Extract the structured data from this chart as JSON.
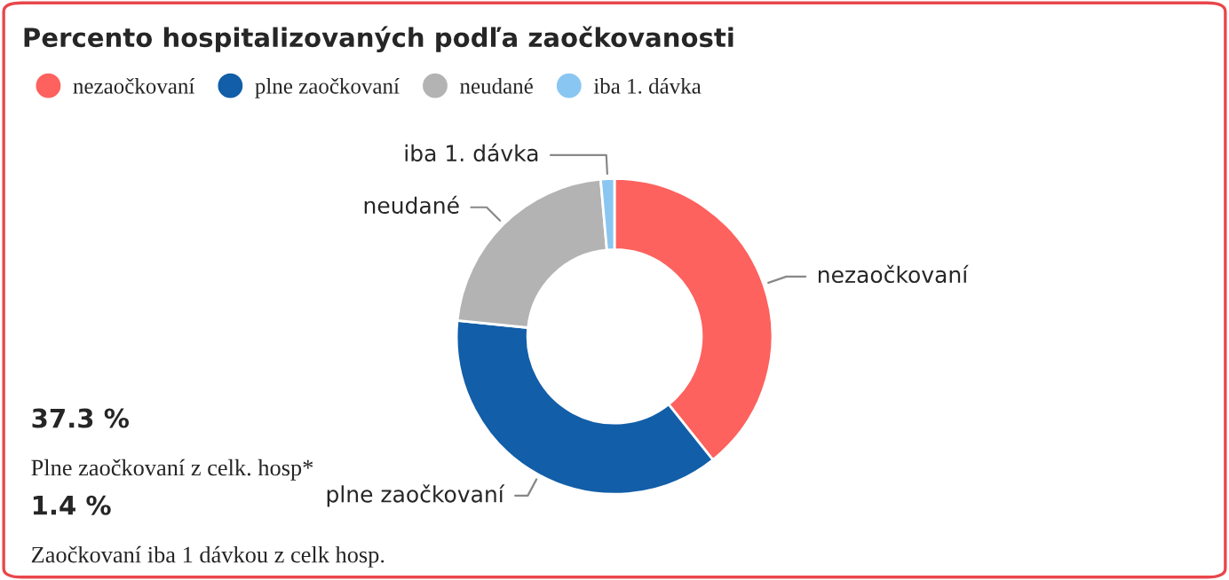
{
  "chart_data": {
    "type": "donut",
    "title": "Percento hospitalizovaných podľa zaočkovanosti",
    "categories": [
      "nezaočkovaní",
      "plne zaočkovaní",
      "neudané",
      "iba 1. dávka"
    ],
    "values": [
      39.3,
      37.3,
      22.0,
      1.4
    ],
    "colors": [
      "#fd625e",
      "#125ea8",
      "#b3b3b3",
      "#8ac6f2"
    ],
    "legend": "top left",
    "annotations": [
      "37.3 %",
      "Plne zaočkovaní z celk. hosp*",
      "1.4 %",
      "Zaočkovaní iba 1 dávkou z celk hosp."
    ]
  }
}
